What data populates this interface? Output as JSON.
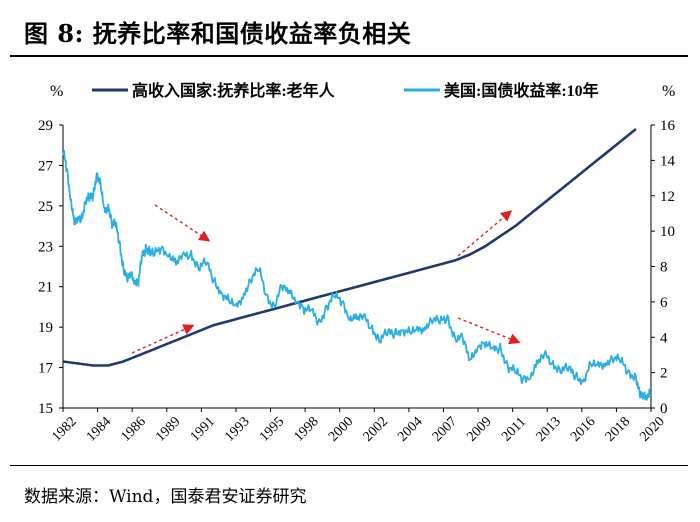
{
  "title": "图 8:  抚养比率和国债收益率负相关",
  "source": "数据来源：Wind，国泰君安证券研究",
  "chart_data": {
    "type": "line",
    "left_unit": "%",
    "right_unit": "%",
    "left_ylim": [
      15,
      29
    ],
    "left_ticks": [
      15,
      17,
      19,
      21,
      23,
      25,
      27,
      29
    ],
    "right_ylim": [
      0,
      16
    ],
    "right_ticks": [
      0,
      2,
      4,
      6,
      8,
      10,
      12,
      14,
      16
    ],
    "x_tick_labels": [
      "1982",
      "1984",
      "1986",
      "1989",
      "1991",
      "1993",
      "1995",
      "1998",
      "2000",
      "2002",
      "2004",
      "2007",
      "2009",
      "2011",
      "2013",
      "2016",
      "2018",
      "2020"
    ],
    "xlim": [
      1982,
      2021
    ],
    "grid": false,
    "legend_position": "top",
    "series": [
      {
        "name": "高收入国家:抚养比率:老年人",
        "axis": "left",
        "color": "#1f3a6e",
        "x": [
          1982,
          1983,
          1984,
          1985,
          1986,
          1987,
          1988,
          1989,
          1990,
          1991,
          1992,
          1993,
          1994,
          1995,
          1996,
          1997,
          1998,
          1999,
          2000,
          2001,
          2002,
          2003,
          2004,
          2005,
          2006,
          2007,
          2008,
          2009,
          2010,
          2011,
          2012,
          2013,
          2014,
          2015,
          2016,
          2017,
          2018,
          2019,
          2020
        ],
        "values": [
          17.3,
          17.2,
          17.1,
          17.1,
          17.3,
          17.6,
          17.9,
          18.2,
          18.5,
          18.8,
          19.1,
          19.3,
          19.5,
          19.7,
          19.9,
          20.1,
          20.3,
          20.5,
          20.7,
          20.9,
          21.1,
          21.3,
          21.5,
          21.7,
          21.9,
          22.1,
          22.3,
          22.6,
          23.0,
          23.5,
          24.0,
          24.6,
          25.2,
          25.8,
          26.4,
          27.0,
          27.6,
          28.2,
          28.8
        ]
      },
      {
        "name": "美国:国债收益率:10年",
        "axis": "right",
        "color": "#29aee6",
        "x": [
          1982.0,
          1982.25,
          1982.5,
          1982.75,
          1983.0,
          1983.25,
          1983.5,
          1983.75,
          1984.0,
          1984.25,
          1984.5,
          1984.75,
          1985.0,
          1985.25,
          1985.5,
          1985.75,
          1986.0,
          1986.25,
          1986.5,
          1986.75,
          1987.0,
          1987.25,
          1987.5,
          1987.75,
          1988.0,
          1988.5,
          1989.0,
          1989.5,
          1990.0,
          1990.5,
          1991.0,
          1991.5,
          1992.0,
          1992.5,
          1993.0,
          1993.5,
          1994.0,
          1994.5,
          1995.0,
          1995.5,
          1996.0,
          1996.5,
          1997.0,
          1997.5,
          1998.0,
          1998.5,
          1999.0,
          1999.5,
          2000.0,
          2000.5,
          2001.0,
          2001.5,
          2002.0,
          2002.5,
          2003.0,
          2003.5,
          2004.0,
          2004.5,
          2005.0,
          2005.5,
          2006.0,
          2006.5,
          2007.0,
          2007.5,
          2008.0,
          2008.5,
          2009.0,
          2009.5,
          2010.0,
          2010.5,
          2011.0,
          2011.5,
          2012.0,
          2012.5,
          2013.0,
          2013.5,
          2014.0,
          2014.5,
          2015.0,
          2015.5,
          2016.0,
          2016.5,
          2017.0,
          2017.5,
          2018.0,
          2018.5,
          2019.0,
          2019.5,
          2020.0,
          2020.25,
          2020.5,
          2020.75,
          2021.0
        ],
        "values": [
          14.5,
          13.5,
          12.0,
          10.5,
          10.5,
          10.8,
          11.8,
          11.8,
          12.0,
          13.4,
          12.5,
          11.0,
          11.5,
          10.5,
          10.3,
          9.3,
          8.0,
          7.2,
          7.5,
          7.3,
          7.2,
          8.5,
          9.0,
          9.0,
          8.6,
          9.0,
          8.8,
          8.2,
          8.5,
          8.7,
          8.0,
          8.2,
          7.2,
          6.6,
          6.0,
          5.6,
          6.5,
          7.4,
          7.8,
          6.3,
          5.8,
          6.8,
          6.5,
          6.2,
          5.6,
          5.4,
          4.8,
          5.8,
          6.3,
          6.0,
          5.2,
          5.1,
          5.0,
          4.5,
          3.9,
          4.2,
          4.2,
          4.5,
          4.2,
          4.3,
          4.6,
          5.1,
          4.8,
          5.1,
          4.0,
          3.9,
          2.6,
          3.6,
          3.7,
          3.2,
          3.4,
          2.4,
          2.0,
          1.6,
          1.9,
          2.6,
          2.9,
          2.5,
          2.2,
          2.2,
          1.8,
          1.6,
          2.4,
          2.3,
          2.6,
          2.9,
          2.6,
          2.0,
          1.8,
          0.7,
          0.6,
          0.8,
          1.1
        ]
      }
    ]
  }
}
